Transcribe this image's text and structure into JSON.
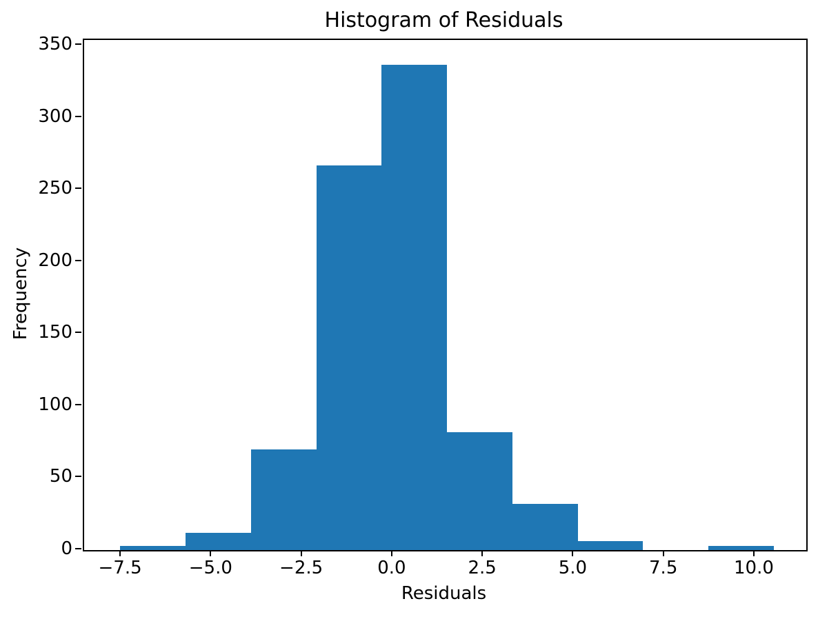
{
  "chart_data": {
    "type": "bar",
    "subtype": "histogram",
    "title": "Histogram of Residuals",
    "xlabel": "Residuals",
    "ylabel": "Frequency",
    "bar_color": "#1f77b4",
    "text_color": "#000000",
    "bin_edges": [
      -7.54,
      -5.73,
      -3.93,
      -2.12,
      -0.32,
      1.49,
      3.29,
      5.1,
      6.9,
      8.71,
      10.51
    ],
    "counts": [
      3,
      12,
      70,
      267,
      337,
      82,
      32,
      6,
      0,
      3
    ],
    "xlim": [
      -8.53,
      11.41
    ],
    "ylim": [
      0,
      354
    ],
    "xticks": [
      -7.5,
      -5.0,
      -2.5,
      0.0,
      2.5,
      5.0,
      7.5,
      10.0
    ],
    "xtick_labels": [
      "−7.5",
      "−5.0",
      "−2.5",
      "0.0",
      "2.5",
      "5.0",
      "7.5",
      "10.0"
    ],
    "yticks": [
      0,
      50,
      100,
      150,
      200,
      250,
      300,
      350
    ],
    "ytick_labels": [
      "0",
      "50",
      "100",
      "150",
      "200",
      "250",
      "300",
      "350"
    ],
    "grid": false,
    "legend": null
  }
}
